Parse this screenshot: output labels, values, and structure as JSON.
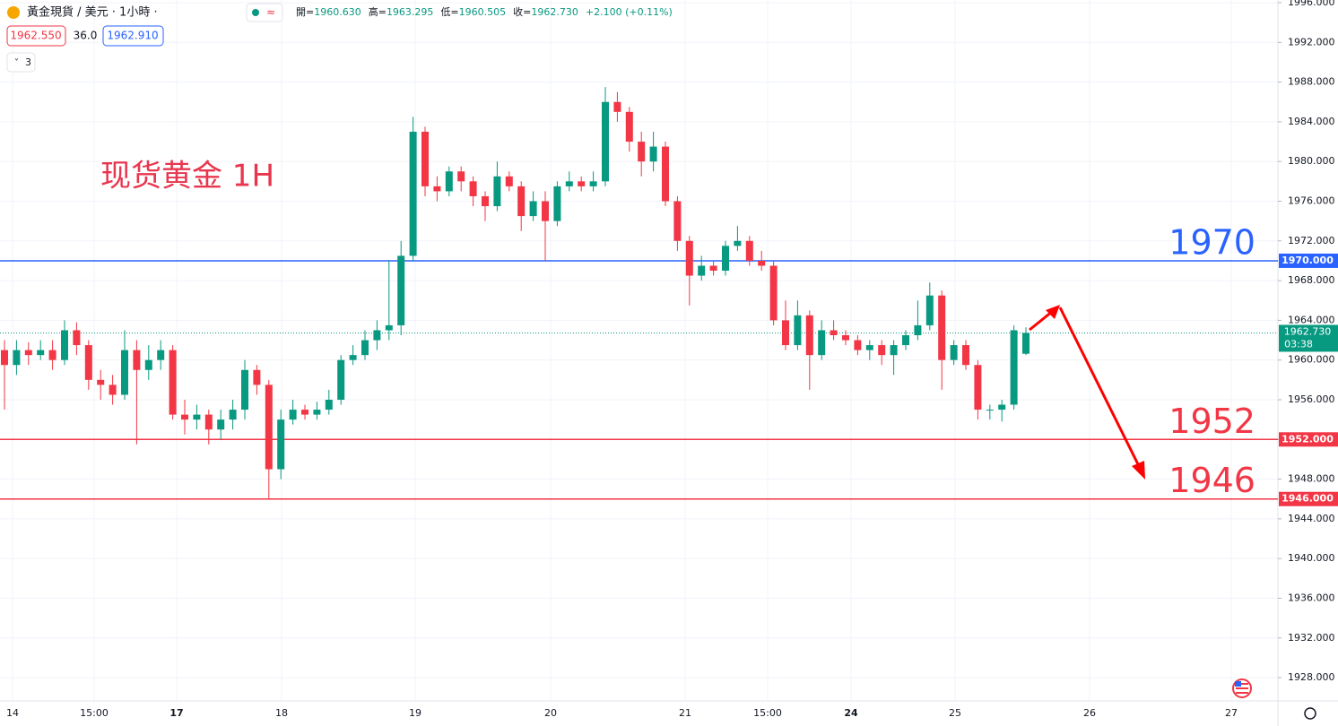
{
  "chart_data": {
    "type": "candlestick",
    "symbol": "黃金現貨 / 美元 · 1小時 ·",
    "ohlc_text": [
      {
        "label": "開=",
        "value": "1960.630"
      },
      {
        "label": "高=",
        "value": "1963.295"
      },
      {
        "label": "低=",
        "value": "1960.505"
      },
      {
        "label": "收=",
        "value": "1962.730"
      },
      {
        "label": "",
        "value": "+2.100 (+0.11%)"
      }
    ],
    "quote": {
      "bid": "1962.550",
      "spread": "36.0",
      "ask": "1962.910"
    },
    "indicator_count": "3",
    "annotation": "现货黄金 1H",
    "up_color": "#089981",
    "down_color": "#f23645",
    "open": [
      1961,
      1959.5,
      1961,
      1960.5,
      1961,
      1960,
      1963,
      1961.5,
      1958,
      1957.5,
      1956.5,
      1961,
      1959,
      1960,
      1961,
      1954.5,
      1954,
      1954.5,
      1953,
      1954,
      1955,
      1959,
      1957.5,
      1949,
      1954,
      1955,
      1954.5,
      1955,
      1956,
      1960,
      1960.5,
      1962,
      1963,
      1963.5,
      1970.5,
      1983,
      1977.5,
      1977,
      1979,
      1978,
      1976.5,
      1975.5,
      1978.5,
      1977.5,
      1974.5,
      1976,
      1974,
      1977.5,
      1978,
      1977.5,
      1978,
      1986,
      1985,
      1982,
      1980,
      1981.5,
      1976,
      1972,
      1968.5,
      1969.5,
      1969,
      1971.5,
      1972,
      1970,
      1969.5,
      1964,
      1961.5,
      1964.5,
      1960.5,
      1963,
      1962.5,
      1962,
      1961,
      1961.5,
      1960.5,
      1961.5,
      1962.5,
      1963.5,
      1966.5,
      1960,
      1961.5,
      1959.5,
      1955,
      1955,
      1955.5,
      1960.63
    ],
    "high": [
      1962,
      1962,
      1961.8,
      1962,
      1962,
      1964,
      1963.8,
      1962,
      1959,
      1958.5,
      1963,
      1962,
      1961.5,
      1962,
      1961.5,
      1956,
      1955.5,
      1955,
      1955,
      1956,
      1960,
      1959.5,
      1958,
      1955,
      1956,
      1955.5,
      1955.8,
      1957,
      1960.5,
      1961.5,
      1963,
      1964,
      1970,
      1972,
      1984.5,
      1983.5,
      1978.5,
      1979.5,
      1979.5,
      1978.5,
      1977,
      1980,
      1979,
      1978,
      1977,
      1977,
      1978,
      1979,
      1978.5,
      1979,
      1987.5,
      1987,
      1985.5,
      1983,
      1983,
      1982,
      1976.5,
      1972.5,
      1970.5,
      1970,
      1972,
      1973.5,
      1972.5,
      1971,
      1970,
      1966,
      1966,
      1965,
      1964,
      1964,
      1963,
      1962.5,
      1962,
      1962,
      1962,
      1963,
      1966,
      1967.8,
      1967,
      1962,
      1962,
      1960,
      1955.5,
      1956,
      1963.5,
      1963.295
    ],
    "low": [
      1955,
      1958.5,
      1959.5,
      1960,
      1959,
      1959.5,
      1960.5,
      1957,
      1956,
      1955.5,
      1956,
      1951.5,
      1958,
      1959,
      1954,
      1952.5,
      1953,
      1951.5,
      1952,
      1953,
      1954,
      1956.5,
      1946,
      1948,
      1953.5,
      1954,
      1954,
      1954.5,
      1955.5,
      1959.5,
      1960,
      1961,
      1962,
      1962.5,
      1970,
      1976.5,
      1976,
      1976.5,
      1977,
      1975.5,
      1974,
      1975,
      1977,
      1973,
      1974,
      1970,
      1973.5,
      1977,
      1977,
      1977,
      1977.5,
      1984,
      1981,
      1978.5,
      1979,
      1975.5,
      1971,
      1965.5,
      1968,
      1968.5,
      1968.5,
      1971,
      1969.5,
      1969,
      1963.5,
      1961,
      1961,
      1957,
      1960,
      1962,
      1961.5,
      1960.5,
      1960,
      1959.5,
      1958.5,
      1961,
      1962,
      1963,
      1957,
      1959.5,
      1959,
      1954,
      1954,
      1953.8,
      1955,
      1960.505
    ],
    "close": [
      1959.5,
      1961,
      1960.5,
      1961,
      1960,
      1963,
      1961.5,
      1958,
      1957.5,
      1956.5,
      1961,
      1959,
      1960,
      1961,
      1954.5,
      1954,
      1954.5,
      1953,
      1954,
      1955,
      1959,
      1957.5,
      1949,
      1954,
      1955,
      1954.5,
      1955,
      1956,
      1960,
      1960.5,
      1962,
      1963,
      1963.5,
      1970.5,
      1983,
      1977.5,
      1977,
      1979,
      1978,
      1976.5,
      1975.5,
      1978.5,
      1977.5,
      1974.5,
      1976,
      1974,
      1977.5,
      1978,
      1977.5,
      1978,
      1986,
      1985,
      1982,
      1980,
      1981.5,
      1976,
      1972,
      1968.5,
      1969.5,
      1969,
      1971.5,
      1972,
      1970,
      1969.5,
      1964,
      1961.5,
      1964.5,
      1960.5,
      1963,
      1962.5,
      1962,
      1961,
      1961.5,
      1960.5,
      1961.5,
      1962.5,
      1963.5,
      1966.5,
      1960,
      1961.5,
      1959.5,
      1955,
      1955,
      1955.5,
      1963,
      1962.73
    ],
    "ylim": [
      1925.66,
      1996.27
    ],
    "yticks": [
      {
        "value": 1928,
        "label": "1928.000"
      },
      {
        "value": 1932,
        "label": "1932.000"
      },
      {
        "value": 1936,
        "label": "1936.000"
      },
      {
        "value": 1940,
        "label": "1940.000"
      },
      {
        "value": 1944,
        "label": "1944.000"
      },
      {
        "value": 1948,
        "label": "1948.000"
      },
      {
        "value": 1952,
        "label": "1952.000"
      },
      {
        "value": 1956,
        "label": "1956.000"
      },
      {
        "value": 1960,
        "label": "1960.000"
      },
      {
        "value": 1964,
        "label": "1964.000"
      },
      {
        "value": 1968,
        "label": "1968.000"
      },
      {
        "value": 1972,
        "label": "1972.000"
      },
      {
        "value": 1976,
        "label": "1976.000"
      },
      {
        "value": 1980,
        "label": "1980.000"
      },
      {
        "value": 1984,
        "label": "1984.000"
      },
      {
        "value": 1988,
        "label": "1988.000"
      },
      {
        "value": 1992,
        "label": "1992.000"
      },
      {
        "value": 1996,
        "label": "1996.000"
      }
    ],
    "xtick_labels": [
      "14",
      "15:00",
      "17",
      "18",
      "19",
      "20",
      "21",
      "15:00",
      "24",
      "25",
      "26",
      "27"
    ],
    "hlines": [
      {
        "value": 1970,
        "tag": "1970.000",
        "color": "#2962ff"
      },
      {
        "value": 1952,
        "tag": "1952.000",
        "color": "#f23645"
      },
      {
        "value": 1946,
        "tag": "1946.000",
        "color": "#f23645"
      }
    ],
    "last_price": {
      "value": 1962.73,
      "label": "1962.730",
      "countdown": "03:38"
    },
    "grid": true
  }
}
